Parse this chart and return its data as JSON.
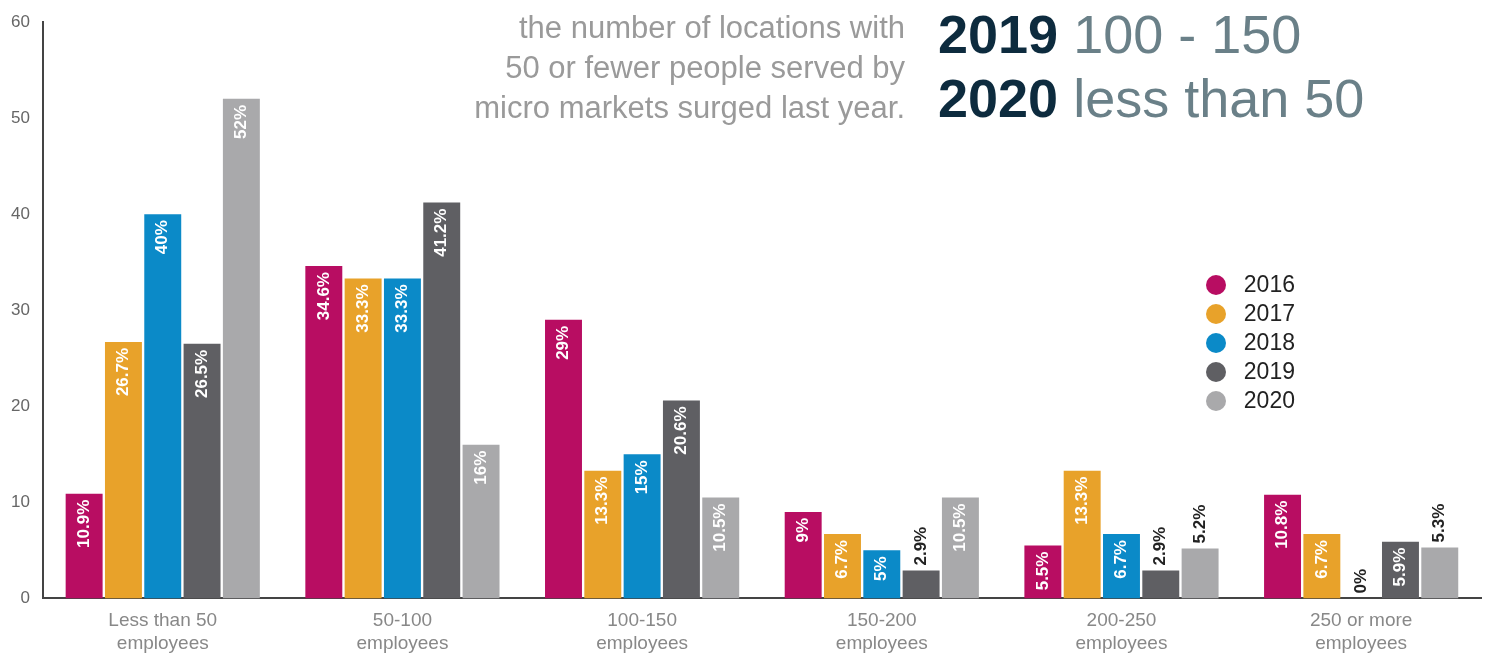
{
  "chart_data": {
    "type": "bar",
    "annotations": [
      "the number of locations with\n50 or fewer people served by\nmicro markets surged last year.",
      "2019 100 - 150",
      "2020 less than 50"
    ],
    "categories": [
      "Less than 50 employees",
      "50-100 employees",
      "100-150 employees",
      "150-200 employees",
      "200-250 employees",
      "250 or more employees"
    ],
    "series": [
      {
        "name": "2016",
        "color": "#b80d62",
        "values": [
          10.9,
          34.6,
          29,
          9,
          5.5,
          10.8
        ],
        "value_labels": [
          "10.9%",
          "34.6%",
          "29%",
          "9%",
          "5.5%",
          "10.8%"
        ]
      },
      {
        "name": "2017",
        "color": "#e8a22a",
        "values": [
          26.7,
          33.3,
          13.3,
          6.7,
          13.3,
          6.7
        ],
        "value_labels": [
          "26.7%",
          "33.3%",
          "13.3%",
          "6.7%",
          "13.3%",
          "6.7%"
        ]
      },
      {
        "name": "2018",
        "color": "#0b8ac8",
        "values": [
          40,
          33.3,
          15,
          5,
          6.7,
          0
        ],
        "value_labels": [
          "40%",
          "33.3%",
          "15%",
          "5%",
          "6.7%",
          "0%"
        ]
      },
      {
        "name": "2019",
        "color": "#5f5f63",
        "values": [
          26.5,
          41.2,
          20.6,
          2.9,
          2.9,
          5.9
        ],
        "value_labels": [
          "26.5%",
          "41.2%",
          "20.6%",
          "2.9%",
          "2.9%",
          "5.9%"
        ]
      },
      {
        "name": "2020",
        "color": "#a9a9ab",
        "values": [
          52,
          16,
          10.5,
          10.5,
          5.2,
          5.3
        ],
        "value_labels": [
          "52%",
          "16%",
          "10.5%",
          "10.5%",
          "5.2%",
          "5.3%"
        ]
      }
    ],
    "ylim": [
      0,
      60
    ],
    "yticks": [
      0,
      10,
      20,
      30,
      40,
      50,
      60
    ],
    "grid": false,
    "legend": "right"
  }
}
